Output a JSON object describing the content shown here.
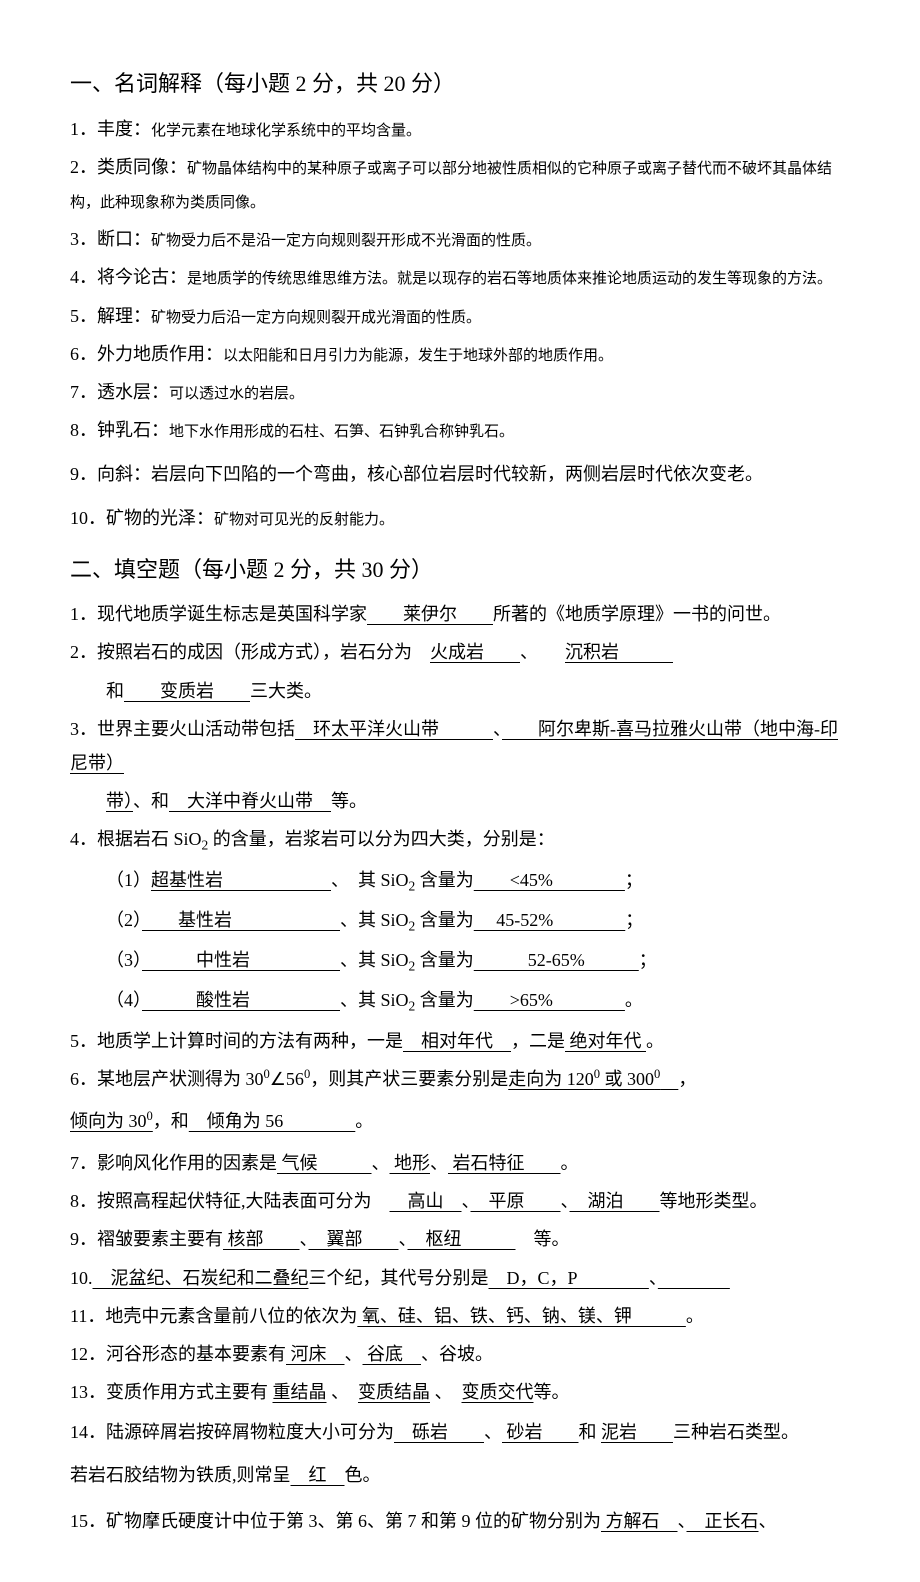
{
  "section1": {
    "heading": "一、名词解释（每小题 2 分，共 20 分）",
    "items": [
      {
        "num": "1．",
        "term": "丰度：",
        "defn": "化学元素在地球化学系统中的平均含量。"
      },
      {
        "num": "2．",
        "term": "类质同像：",
        "defn": "矿物晶体结构中的某种原子或离子可以部分地被性质相似的它种原子或离子替代而不破坏其晶体结构，此种现象称为类质同像。"
      },
      {
        "num": "3．",
        "term": "断口：",
        "defn": "矿物受力后不是沿一定方向规则裂开形成不光滑面的性质。"
      },
      {
        "num": "4．",
        "term": "将今论古：",
        "defn": "是地质学的传统思维思维方法。就是以现存的岩石等地质体来推论地质运动的发生等现象的方法。"
      },
      {
        "num": "5．",
        "term": "解理：",
        "defn": "矿物受力后沿一定方向规则裂开成光滑面的性质。"
      },
      {
        "num": "6．",
        "term": "外力地质作用：",
        "defn": "以太阳能和日月引力为能源，发生于地球外部的地质作用。"
      },
      {
        "num": "7．",
        "term": "透水层：",
        "defn": "可以透过水的岩层。"
      },
      {
        "num": "8．",
        "term": "钟乳石：",
        "defn": "地下水作用形成的石柱、石笋、石钟乳合称钟乳石。"
      },
      {
        "num": "9．",
        "term": "向斜：",
        "defn": "岩层向下凹陷的一个弯曲，核心部位岩层时代较新，两侧岩层时代依次变老。"
      },
      {
        "num": "10．",
        "term": "矿物的光泽：",
        "defn": "矿物对可见光的反射能力。"
      }
    ]
  },
  "section2": {
    "heading": "二、填空题（每小题 2 分，共 30 分）",
    "q1": {
      "prefix": "1．现代地质学诞生标志是英国科学家",
      "blank1": "　　莱伊尔　　",
      "mid1": "所著的《地质学原理》一书的问世。"
    },
    "q2": {
      "line1_prefix": "2．按照岩石的成因（形成方式），岩石分为　",
      "blank1": "火成岩　　",
      "sep1": "、　　",
      "blank2": "沉积岩　　　",
      "line2_prefix": "和",
      "blank3": "　　变质岩　　",
      "line2_suffix": "三大类。"
    },
    "q3": {
      "line1_prefix": "3．世界主要火山活动带包括",
      "blank1": "　环太平洋火山带　　　",
      "line1_sep": "、",
      "blank2": "　　阿尔卑斯-喜马拉雅火山带（地中海-印尼带）",
      "line2_mid": "、和",
      "blank3": "　大洋中脊火山带　",
      "line2_suffix": "等。"
    },
    "q4": {
      "line1": "4．根据岩石 SiO",
      "line1_suffix": " 的含量，岩浆岩可以分为四大类，分别是：",
      "rows": [
        {
          "label": "（1）",
          "blank1": "超基性岩　　　　　　",
          "mid": "、　其 SiO",
          "mid2": " 含量为",
          "blank2": "　　<45%　　　　",
          "end": "；"
        },
        {
          "label": "（2）",
          "blank1": "　　基性岩　　　　　　",
          "mid": "、其 SiO",
          "mid2": " 含量为",
          "blank2": "　 45-52%　　　　",
          "end": "；"
        },
        {
          "label": "（3）",
          "blank1": "　　　中性岩　　　　　",
          "mid": "、其 SiO",
          "mid2": " 含量为",
          "blank2": "　　　52-65%　　　",
          "end": "；"
        },
        {
          "label": "（4）",
          "blank1": "　　　酸性岩　　　　　",
          "mid": "、其 SiO",
          "mid2": " 含量为",
          "blank2": "　　>65%　　　　",
          "end": "。"
        }
      ]
    },
    "q5": {
      "prefix": "5．地质学上计算时间的方法有两种，一是",
      "blank1": "　相对年代　",
      "mid": "，二是",
      "blank2": " 绝对年代 ",
      "suffix": "。"
    },
    "q6": {
      "line1_prefix": "6．某地层产状测得为 30",
      "line1_mid": "∠56",
      "line1_suffix": "，则其产状三要素分别是",
      "blank1": "走向为 120",
      "blank1b": " 或 300",
      "blank1c": "　",
      "line1_end": "，",
      "line2_blank1": "倾向为 30",
      "line2_mid": "，和",
      "line2_blank2": "　倾角为 56　　　　",
      "line2_suffix": "。"
    },
    "q7": {
      "prefix": "7．影响风化作用的因素是",
      "blank1": " 气候　　　",
      "sep1": "、",
      "blank2": " 地形",
      "sep2": "、",
      "blank3": " 岩石特征　　",
      "suffix": "。"
    },
    "q8": {
      "prefix": "8．按照高程起伏特征,大陆表面可分为　",
      "blank1": "　高山　",
      "sep1": "、",
      "blank2": "　平原　　",
      "sep2": "、",
      "blank3": "　湖泊　　",
      "suffix": "等地形类型。"
    },
    "q9": {
      "prefix": "9．褶皱要素主要有",
      "blank1": " 核部　　",
      "sep1": "、",
      "blank2": "　翼部　　",
      "sep2": "、",
      "blank3": "　枢纽　　　",
      "suffix": "　等。"
    },
    "q10": {
      "prefix": "10.",
      "blank1": "　泥盆纪、石炭纪和二叠纪",
      "mid1": "三个纪，其代号分别是",
      "blank2": "　D，C，P　　　　",
      "sep": "、",
      "blank3": "　　　　"
    },
    "q11": {
      "prefix": "11．地壳中元素含量前八位的依次为",
      "blank1": " 氧、硅、铝、铁、钙、钠、镁、钾　　　",
      "suffix": "。"
    },
    "q12": {
      "prefix": "12．河谷形态的基本要素有",
      "blank1": " 河床　",
      "sep1": "、",
      "blank2": " 谷底　",
      "mid": "、谷坡。"
    },
    "q13": {
      "prefix": "13．变质作用方式主要有 ",
      "blank1": "重结晶",
      "sep1": " 、　",
      "blank2": "变质结晶",
      "sep2": " 、　",
      "blank3": "变质交代",
      "suffix": "等。"
    },
    "q14": {
      "line1_prefix": "14．陆源碎屑岩按碎屑物粒度大小可分为",
      "blank1": "　砾岩　　",
      "sep1": "、",
      "blank2": " 砂岩　　",
      "mid": "和 ",
      "blank3": " 泥岩　　",
      "line1_suffix": "三种岩石类型。",
      "line2_prefix": "若岩石胶结物为铁质,则常呈",
      "blank4": "　红　",
      "line2_suffix": "色。"
    },
    "q15": {
      "prefix": "15．矿物摩氏硬度计中位于第 3、第 6、第 7 和第 9 位的矿物分别为",
      "blank1": " 方解石　",
      "sep1": "、",
      "blank2": "　正长石",
      "suffix": "、"
    }
  }
}
